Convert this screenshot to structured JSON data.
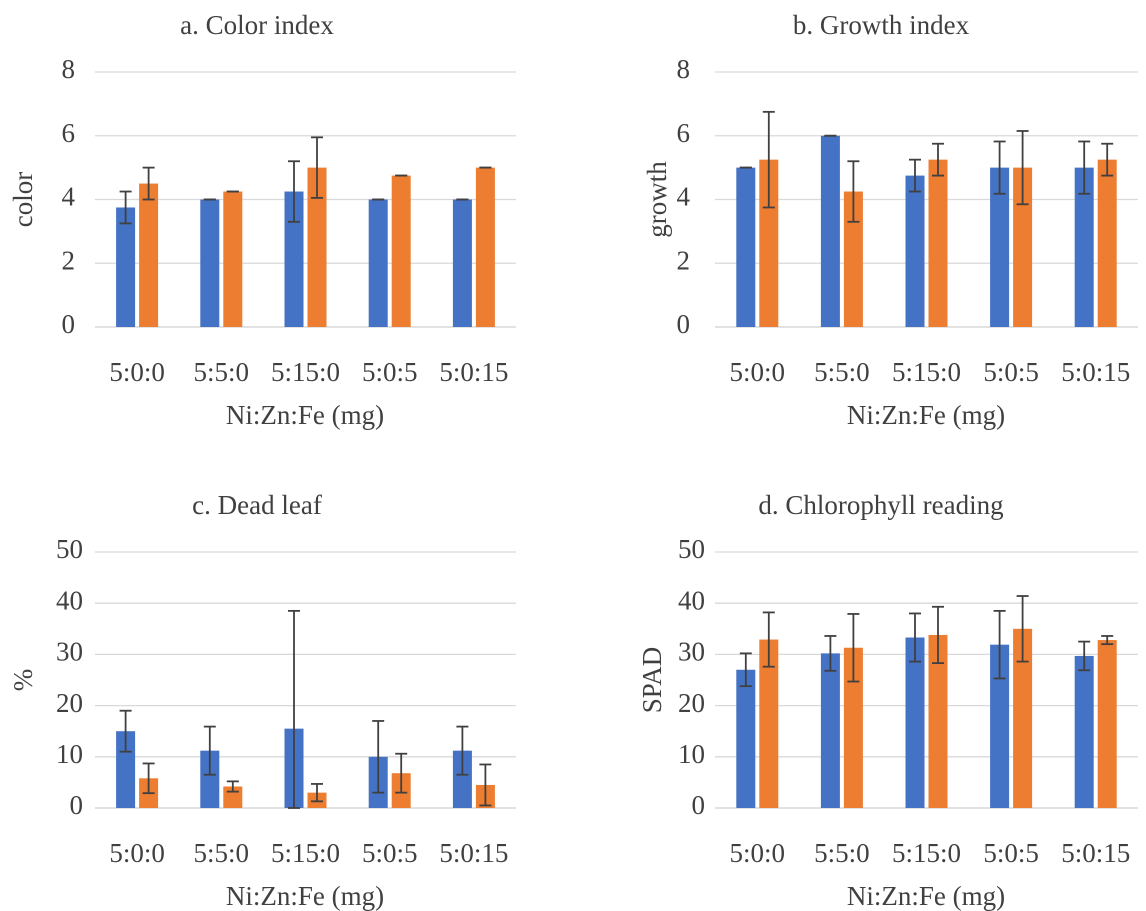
{
  "colors": {
    "series_1": "#4472C4",
    "series_2": "#ED7D31",
    "error_bar": "#404040",
    "grid": "#D9D9D9",
    "text": "#404040"
  },
  "chart_data": [
    {
      "type": "bar",
      "title": "a. Color index",
      "xlabel": "Ni:Zn:Fe (mg)",
      "ylabel": "color",
      "categories": [
        "5:0:0",
        "5:5:0",
        "5:15:0",
        "5:0:5",
        "5:0:15"
      ],
      "yticks": [
        "0",
        "2",
        "4",
        "6",
        "8"
      ],
      "ylim": [
        0,
        8
      ],
      "grid": true,
      "series": [
        {
          "color": "#4472C4",
          "values": [
            3.75,
            4.0,
            4.25,
            4.0,
            4.0
          ],
          "errors": [
            0.5,
            0.0,
            0.95,
            0.0,
            0.0
          ]
        },
        {
          "color": "#ED7D31",
          "values": [
            4.5,
            4.25,
            5.0,
            4.75,
            5.0
          ],
          "errors": [
            0.5,
            0.0,
            0.95,
            0.0,
            0.0
          ]
        }
      ]
    },
    {
      "type": "bar",
      "title": "b. Growth index",
      "xlabel": "Ni:Zn:Fe (mg)",
      "ylabel": "growth",
      "categories": [
        "5:0:0",
        "5:5:0",
        "5:15:0",
        "5:0:5",
        "5:0:15"
      ],
      "yticks": [
        "0",
        "2",
        "4",
        "6",
        "8"
      ],
      "ylim": [
        0,
        8
      ],
      "grid": true,
      "series": [
        {
          "color": "#4472C4",
          "values": [
            5.0,
            6.0,
            4.75,
            5.0,
            5.0
          ],
          "errors": [
            0.0,
            0.0,
            0.5,
            0.82,
            0.82
          ]
        },
        {
          "color": "#ED7D31",
          "values": [
            5.25,
            4.25,
            5.25,
            5.0,
            5.25
          ],
          "errors": [
            1.5,
            0.95,
            0.5,
            1.15,
            0.5
          ]
        }
      ]
    },
    {
      "type": "bar",
      "title": "c. Dead leaf",
      "xlabel": "Ni:Zn:Fe (mg)",
      "ylabel": "%",
      "categories": [
        "5:0:0",
        "5:5:0",
        "5:15:0",
        "5:0:5",
        "5:0:15"
      ],
      "yticks": [
        "0",
        "10",
        "20",
        "30",
        "40",
        "50"
      ],
      "ylim": [
        0,
        50
      ],
      "grid": true,
      "series": [
        {
          "color": "#4472C4",
          "values": [
            15.0,
            11.2,
            15.5,
            10.0,
            11.2
          ],
          "errors": [
            4.0,
            4.7,
            23.0,
            7.0,
            4.7
          ]
        },
        {
          "color": "#ED7D31",
          "values": [
            5.8,
            4.2,
            3.0,
            6.8,
            4.5
          ],
          "errors": [
            2.9,
            1.0,
            1.7,
            3.8,
            4.0
          ]
        }
      ]
    },
    {
      "type": "bar",
      "title": "d. Chlorophyll reading",
      "xlabel": "Ni:Zn:Fe (mg)",
      "ylabel": "SPAD",
      "categories": [
        "5:0:0",
        "5:5:0",
        "5:15:0",
        "5:0:5",
        "5:0:15"
      ],
      "yticks": [
        "0",
        "10",
        "20",
        "30",
        "40",
        "50"
      ],
      "ylim": [
        0,
        50
      ],
      "grid": true,
      "series": [
        {
          "color": "#4472C4",
          "values": [
            27.0,
            30.2,
            33.3,
            31.9,
            29.7
          ],
          "errors": [
            3.2,
            3.4,
            4.7,
            6.6,
            2.8
          ]
        },
        {
          "color": "#ED7D31",
          "values": [
            32.9,
            31.3,
            33.8,
            35.0,
            32.8
          ],
          "errors": [
            5.3,
            6.6,
            5.5,
            6.4,
            0.8
          ]
        }
      ]
    }
  ]
}
